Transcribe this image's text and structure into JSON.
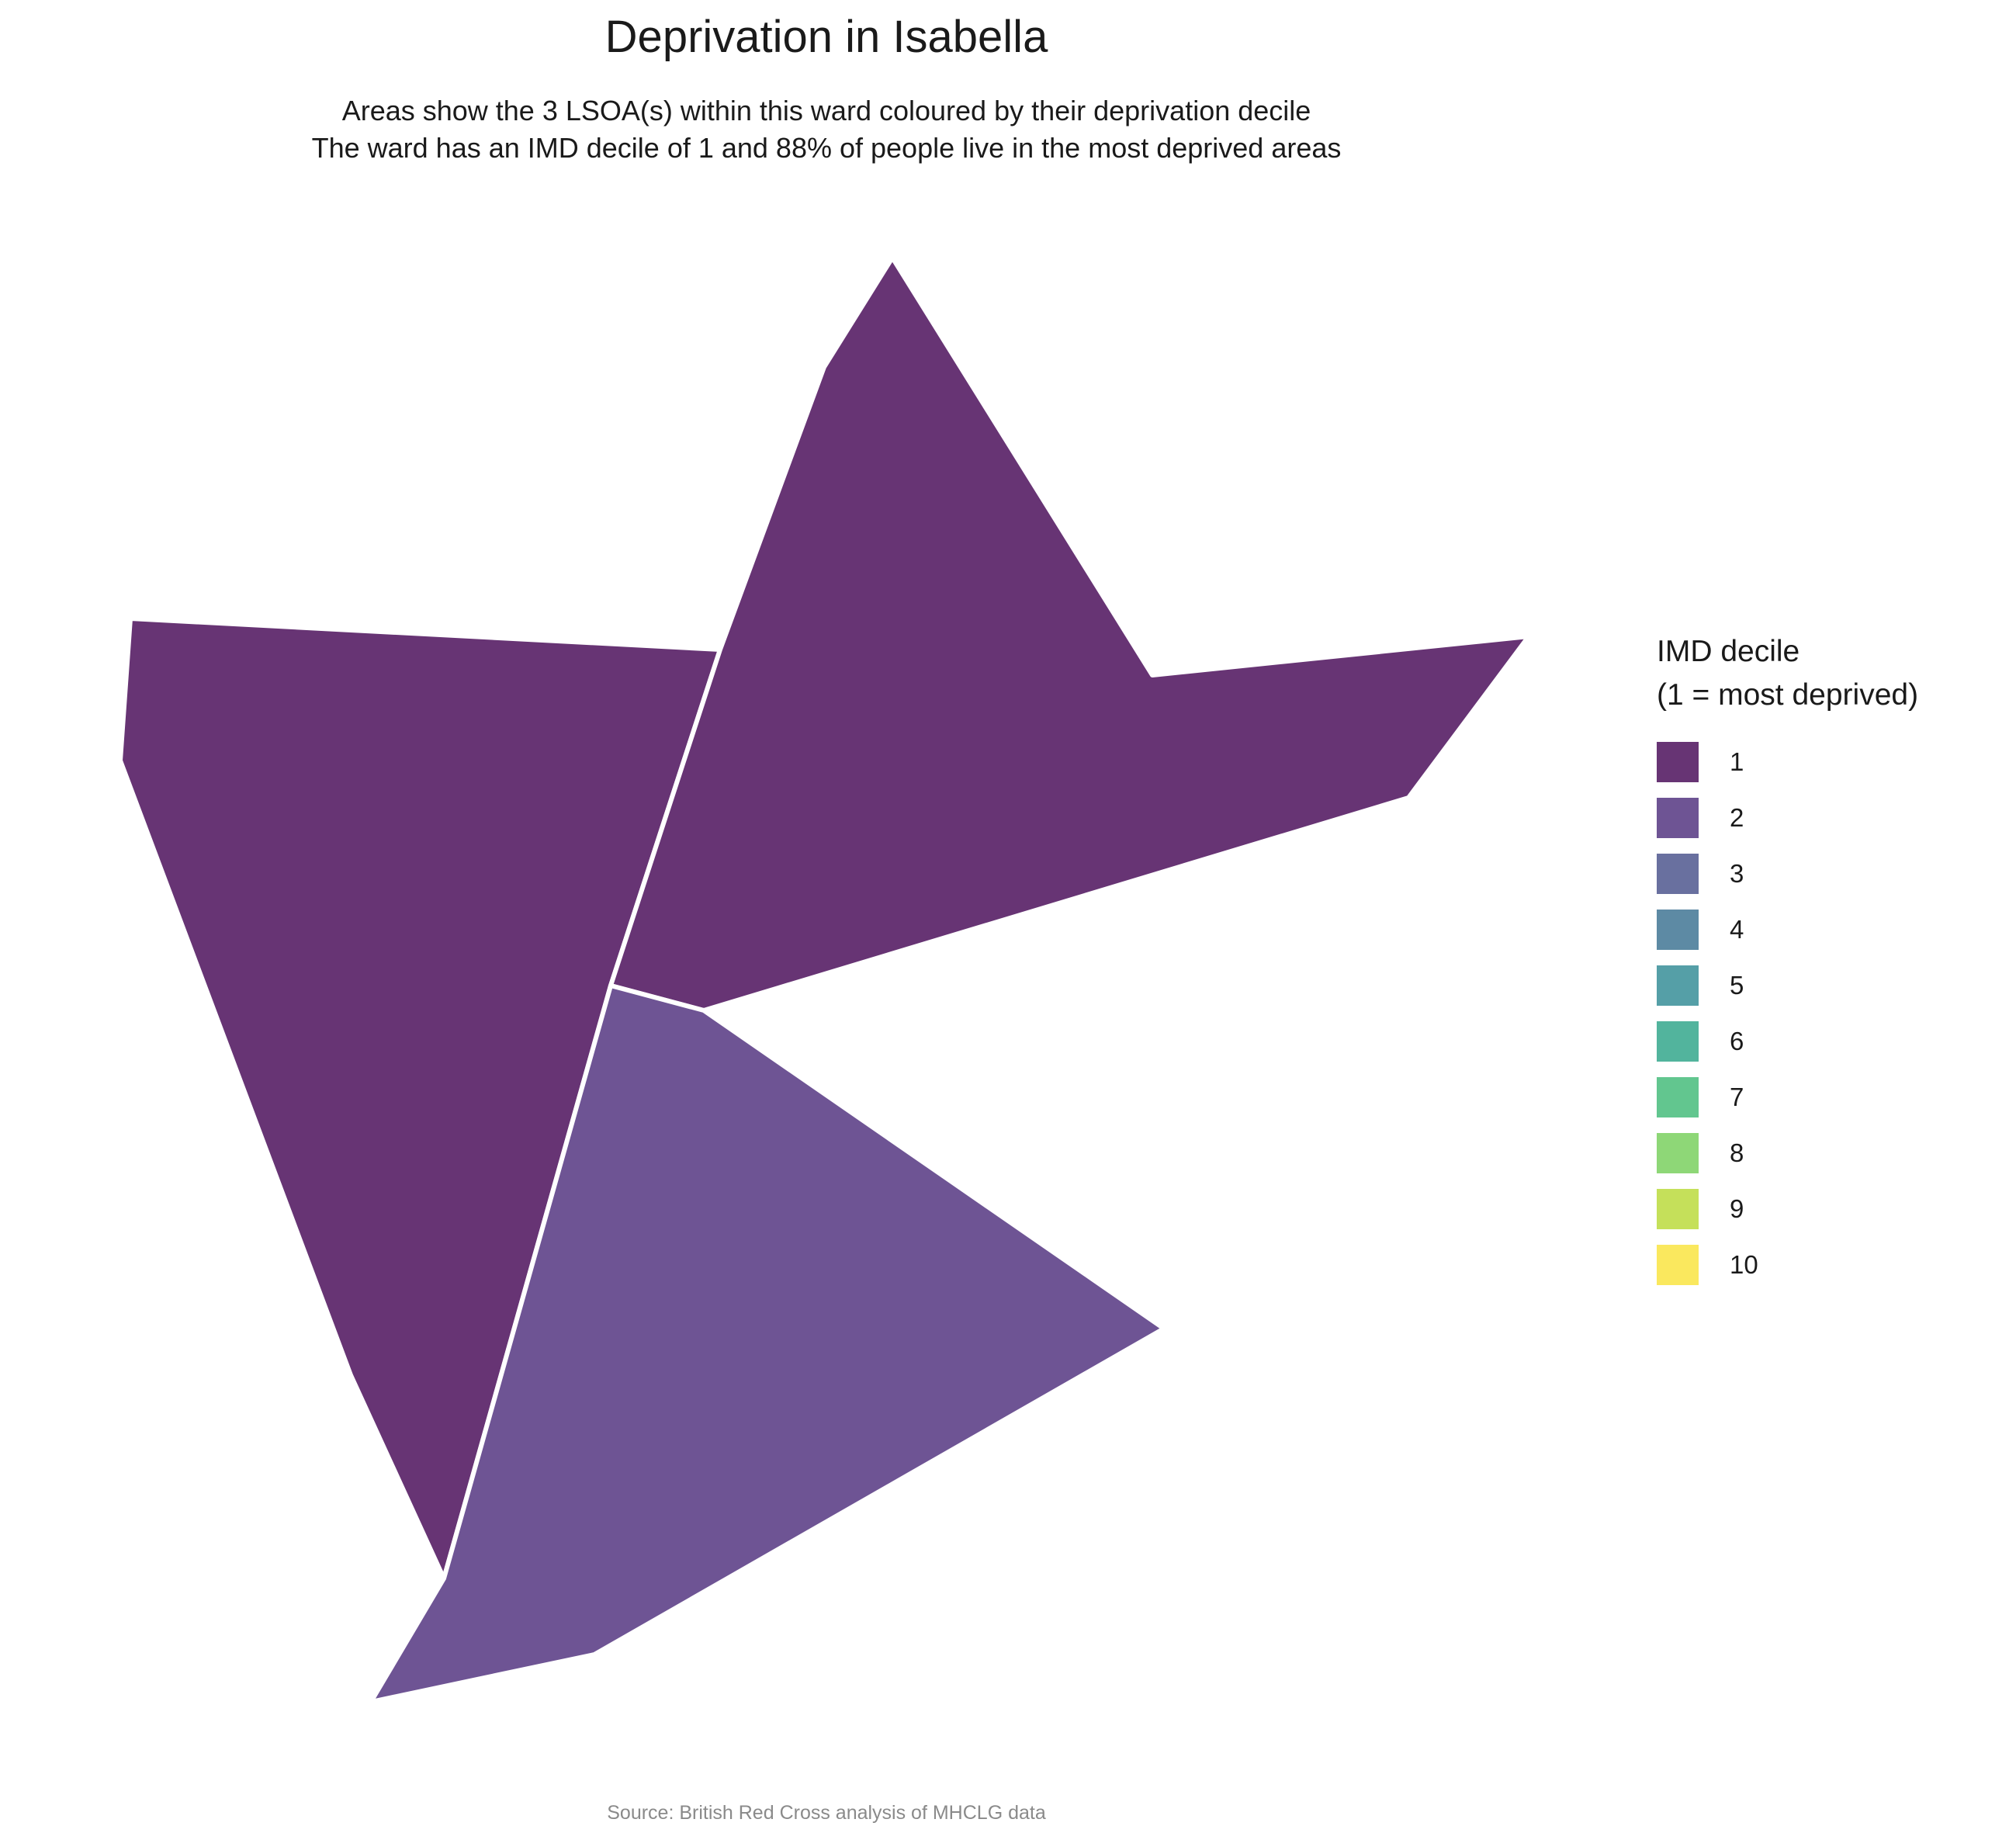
{
  "title": "Deprivation in Isabella",
  "subtitle_line1": "Areas show the 3 LSOA(s) within this ward coloured by their deprivation decile",
  "subtitle_line2": "The ward has an IMD decile of 1 and 88% of people live in the most deprived areas",
  "caption": "Source: British Red Cross analysis of MHCLG data",
  "legend": {
    "title_line1": "IMD decile",
    "title_line2": "(1 = most deprived)",
    "items": [
      {
        "label": "1",
        "color": "#673474"
      },
      {
        "label": "2",
        "color": "#6e5494"
      },
      {
        "label": "3",
        "color": "#69709f"
      },
      {
        "label": "4",
        "color": "#5d8aa4"
      },
      {
        "label": "5",
        "color": "#559fa7"
      },
      {
        "label": "6",
        "color": "#52b49d"
      },
      {
        "label": "7",
        "color": "#62c68f"
      },
      {
        "label": "8",
        "color": "#8ed777"
      },
      {
        "label": "9",
        "color": "#c5e05a"
      },
      {
        "label": "10",
        "color": "#fae85e"
      }
    ]
  },
  "areas": [
    {
      "decile": 1,
      "color": "#673474"
    },
    {
      "decile": 1,
      "color": "#673474"
    },
    {
      "decile": 2,
      "color": "#6e5494"
    }
  ]
}
